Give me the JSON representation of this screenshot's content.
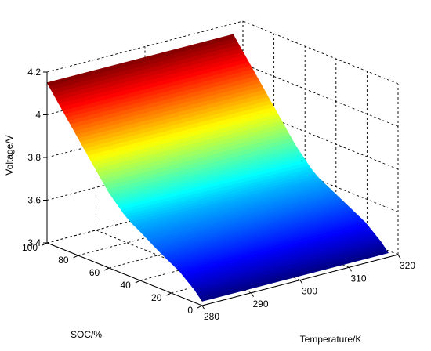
{
  "chart_data": {
    "type": "surface",
    "title": "",
    "xlabel": "Temperature/K",
    "ylabel": "SOC/%",
    "zlabel": "Voltage/V",
    "xlim": [
      280,
      320
    ],
    "ylim": [
      0,
      100
    ],
    "zlim": [
      3.4,
      4.2
    ],
    "x_ticks": [
      "280",
      "290",
      "300",
      "310",
      "320"
    ],
    "y_ticks": [
      "0",
      "20",
      "40",
      "60",
      "80",
      "100"
    ],
    "z_ticks": [
      "3.4",
      "3.6",
      "3.8",
      "4",
      "4.2"
    ],
    "grid": true,
    "colormap": "jet",
    "temperature_range": [
      280,
      318
    ],
    "soc": [
      0,
      5,
      10,
      15,
      20,
      25,
      30,
      35,
      40,
      45,
      50,
      55,
      60,
      65,
      70,
      75,
      80,
      85,
      90,
      95,
      100
    ],
    "voltage": [
      3.42,
      3.46,
      3.49,
      3.52,
      3.54,
      3.56,
      3.58,
      3.6,
      3.62,
      3.64,
      3.67,
      3.71,
      3.75,
      3.8,
      3.85,
      3.9,
      3.95,
      4.0,
      4.05,
      4.1,
      4.15
    ]
  }
}
